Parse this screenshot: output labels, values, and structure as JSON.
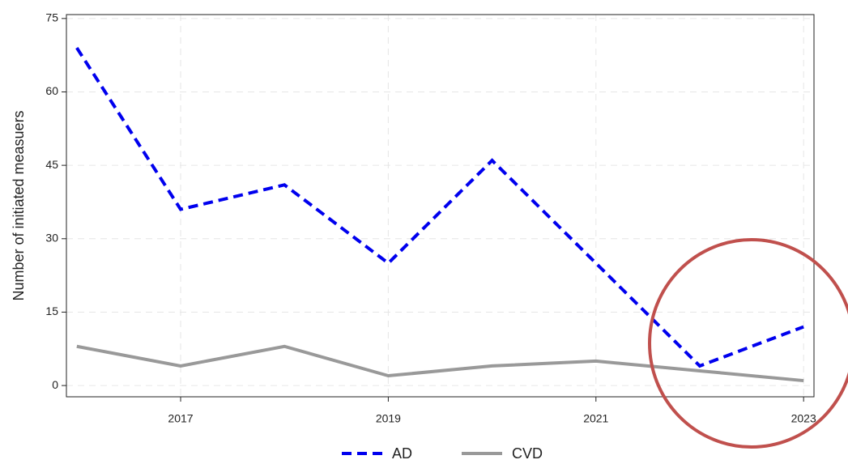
{
  "chart_data": {
    "type": "line",
    "y_label": "Number of initiated measuers",
    "x": [
      2016,
      2017,
      2018,
      2019,
      2020,
      2021,
      2022,
      2023
    ],
    "series": [
      {
        "name": "AD",
        "color": "#0000ee",
        "values": [
          69,
          36,
          41,
          25,
          46,
          25,
          4,
          12
        ]
      },
      {
        "name": "CVD",
        "color": "#999999",
        "values": [
          8,
          4,
          8,
          2,
          4,
          5,
          3,
          1
        ]
      }
    ],
    "xlim": [
      2015.9,
      2023.1
    ],
    "xticks": [
      2017,
      2019,
      2021,
      2023
    ],
    "ylim": [
      -2.3,
      75.8
    ],
    "yticks": [
      0,
      15,
      30,
      45,
      60,
      75
    ],
    "grid": true,
    "legend": "bottom"
  }
}
